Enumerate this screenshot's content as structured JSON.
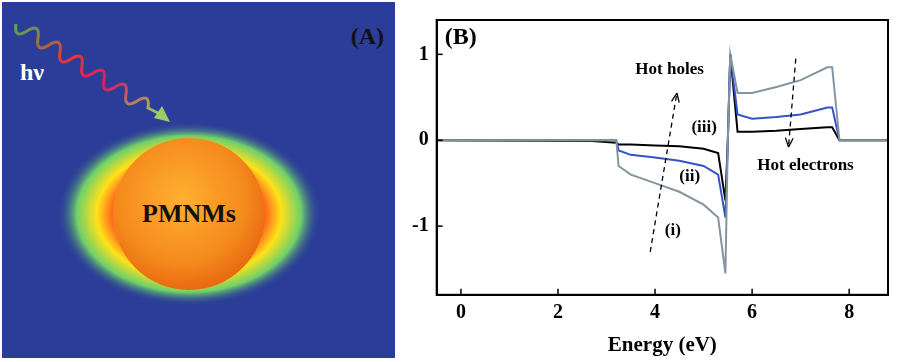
{
  "panel_a": {
    "label": "(A)",
    "light": "hν",
    "particle": "PMNMs"
  },
  "chart_data": {
    "type": "line",
    "title": "(B)",
    "x_label": "Energy (eV)",
    "x": [
      -0.5,
      2.7,
      3.2,
      3.25,
      3.5,
      4,
      4.5,
      5,
      5.3,
      5.45,
      5.5,
      5.55,
      5.7,
      6,
      6.5,
      7,
      7.55,
      7.65,
      7.8,
      8.8
    ],
    "series": [
      {
        "name": "(i)",
        "color": "#8494a0",
        "values": [
          0,
          0,
          0,
          -0.3,
          -0.4,
          -0.5,
          -0.6,
          -0.75,
          -0.9,
          -1.55,
          0,
          1.0,
          0.55,
          0.55,
          0.62,
          0.7,
          0.85,
          0.85,
          0,
          0
        ]
      },
      {
        "name": "(ii)",
        "color": "#3553c4",
        "values": [
          0,
          0,
          0,
          -0.12,
          -0.17,
          -0.2,
          -0.24,
          -0.3,
          -0.4,
          -0.9,
          0,
          1.0,
          0.3,
          0.25,
          0.27,
          0.3,
          0.38,
          0.38,
          0,
          0
        ]
      },
      {
        "name": "(iii)",
        "color": "#000000",
        "values": [
          0,
          -0.01,
          -0.03,
          -0.05,
          -0.05,
          -0.06,
          -0.07,
          -0.1,
          -0.15,
          -0.7,
          0,
          1.0,
          0.1,
          0.1,
          0.11,
          0.13,
          0.15,
          0.15,
          0,
          0
        ]
      }
    ],
    "annotations": [
      {
        "text": "Hot holes",
        "x": 4.3,
        "y": 0.82
      },
      {
        "text": "Hot electrons",
        "x": 7.1,
        "y": -0.3
      }
    ],
    "xlim": [
      -0.5,
      8.8
    ],
    "xticks": [
      0,
      2,
      4,
      6,
      8
    ],
    "ylim": [
      -1.8,
      1.4
    ],
    "yticks": [
      -1,
      0,
      1
    ],
    "grid": false
  }
}
